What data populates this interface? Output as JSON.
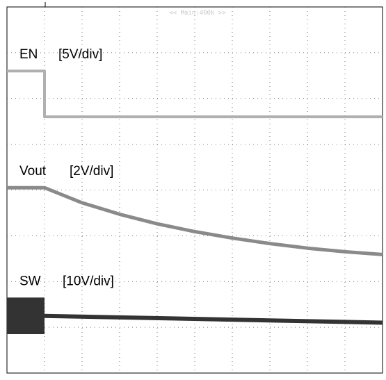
{
  "header": {
    "text": "<< Main:400k >>"
  },
  "chart_data": {
    "type": "line",
    "title": "",
    "grid": true,
    "grid_divisions": {
      "x": 10,
      "y": 8
    },
    "traces": [
      {
        "name": "EN",
        "scale": "[5V/div]",
        "color": "#b0b0b0",
        "points": [
          [
            0,
            6.6
          ],
          [
            1.0,
            6.6
          ],
          [
            1.0,
            5.6
          ],
          [
            10,
            5.6
          ]
        ]
      },
      {
        "name": "Vout",
        "scale": "[2V/div]",
        "color": "#8a8a8a",
        "points": [
          [
            0,
            4.05
          ],
          [
            1.0,
            4.05
          ],
          [
            2.0,
            3.72
          ],
          [
            3.0,
            3.47
          ],
          [
            4.0,
            3.26
          ],
          [
            5.0,
            3.09
          ],
          [
            6.0,
            2.95
          ],
          [
            7.0,
            2.83
          ],
          [
            8.0,
            2.73
          ],
          [
            9.0,
            2.65
          ],
          [
            10.0,
            2.59
          ]
        ]
      },
      {
        "name": "SW",
        "scale": "[10V/div]",
        "color": "#333333",
        "burst": {
          "x_start": 0,
          "x_end": 1.0,
          "y_low": 0.85,
          "y_high": 1.65
        },
        "points": [
          [
            1.0,
            1.25
          ],
          [
            10,
            1.1
          ]
        ]
      }
    ]
  }
}
